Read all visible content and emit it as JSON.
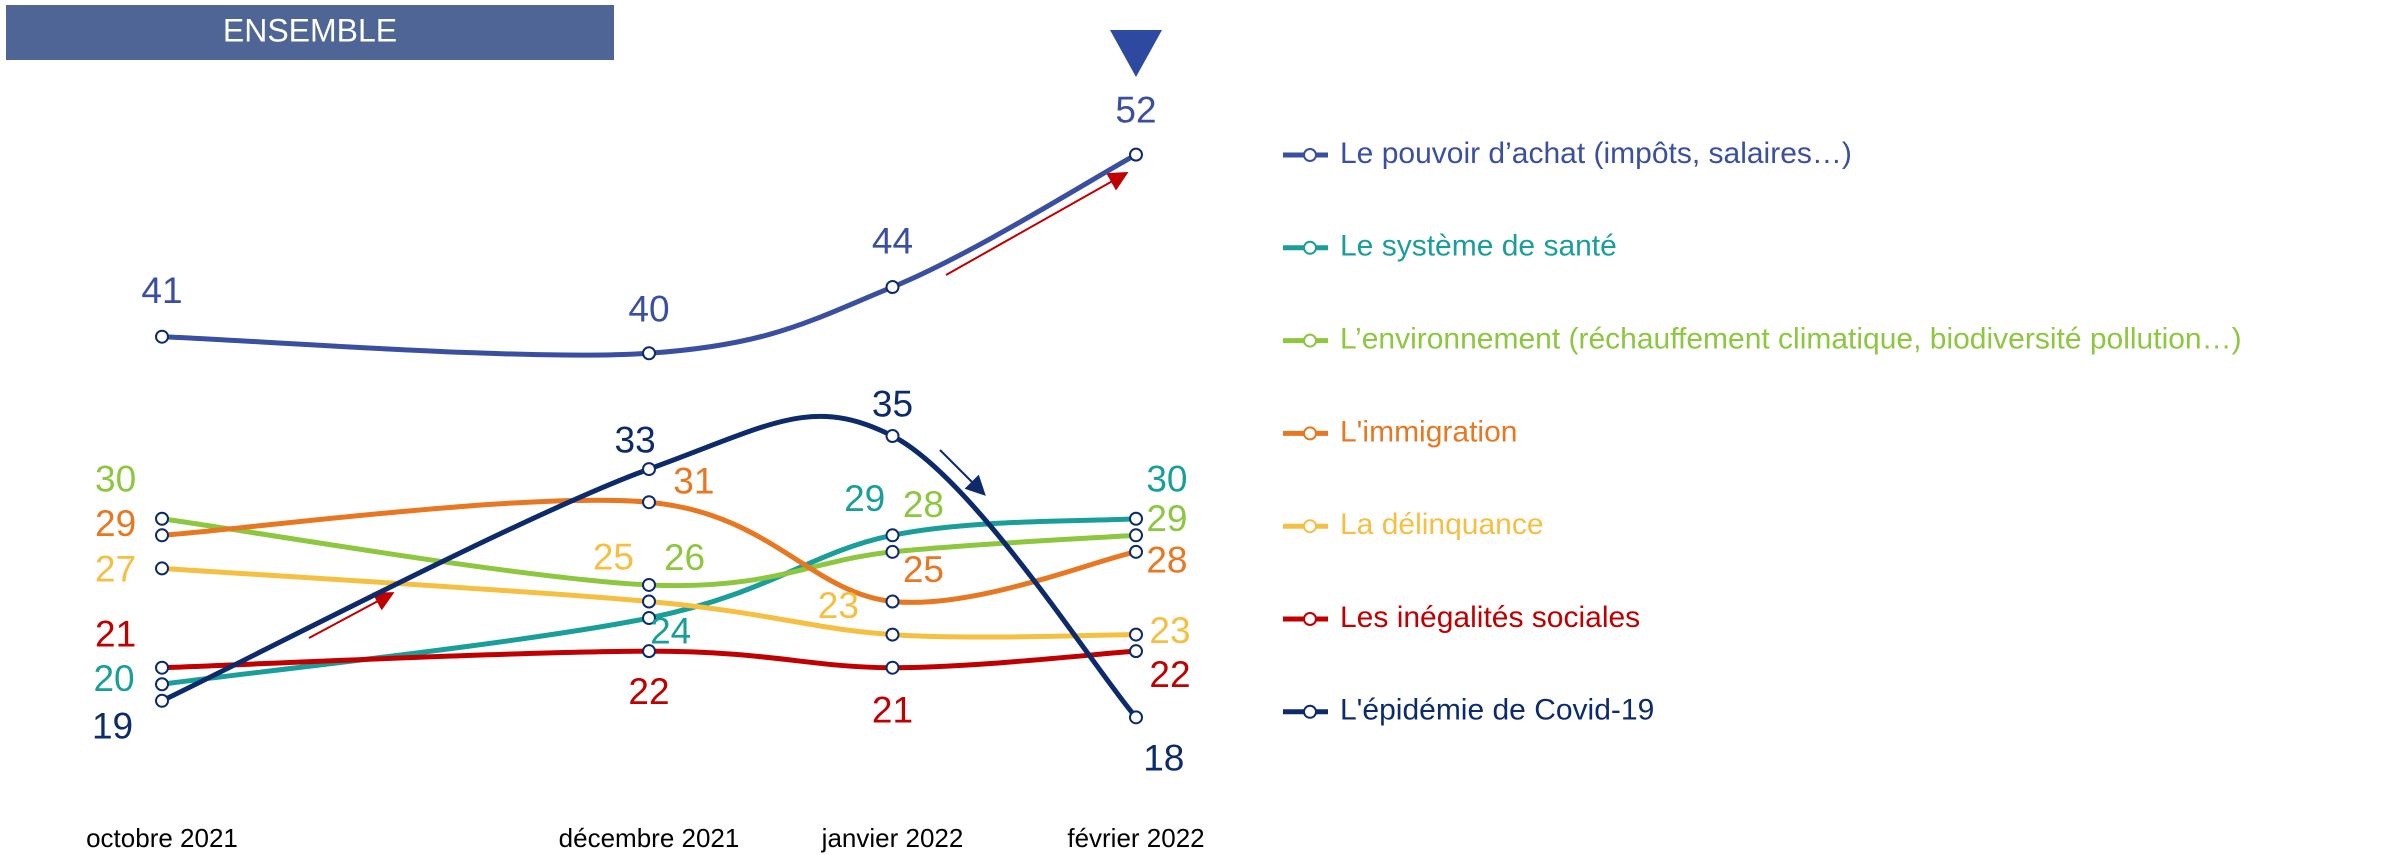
{
  "chart_data": {
    "type": "line",
    "title": "ENSEMBLE",
    "x": [
      "2021-10",
      "2021-12",
      "2022-01",
      "2022-02"
    ],
    "xlim": [
      "2021-10",
      "2022-02"
    ],
    "xticks": [
      {
        "value": "2021-10",
        "label": "octobre 2021"
      },
      {
        "value": "2021-12",
        "label": "décembre 2021"
      },
      {
        "value": "2022-01",
        "label": "janvier 2022"
      },
      {
        "value": "2022-02",
        "label": "février 2022"
      }
    ],
    "ylim": [
      15,
      55
    ],
    "legend": "right",
    "series": [
      {
        "name": "Le pouvoir d’achat (impôts, salaires…)",
        "color": "#3a4fa0",
        "values": [
          41,
          40,
          44,
          52
        ]
      },
      {
        "name": "Le système de santé",
        "color": "#1a9e9a",
        "values": [
          20,
          24,
          29,
          30
        ]
      },
      {
        "name": "L’environnement (réchauffement climatique, biodiversité pollution…)",
        "color": "#8dc63f",
        "values": [
          30,
          26,
          28,
          29
        ]
      },
      {
        "name": "L'immigration",
        "color": "#e87722",
        "values": [
          29,
          31,
          25,
          28
        ]
      },
      {
        "name": "La délinquance",
        "color": "#f5bf42",
        "values": [
          27,
          25,
          23,
          23
        ]
      },
      {
        "name": "Les inégalités sociales",
        "color": "#c00000",
        "values": [
          21,
          22,
          21,
          22
        ]
      },
      {
        "name": "L'épidémie de Covid-19",
        "color": "#0d2b6b",
        "values": [
          19,
          33,
          35,
          18
        ]
      }
    ]
  }
}
